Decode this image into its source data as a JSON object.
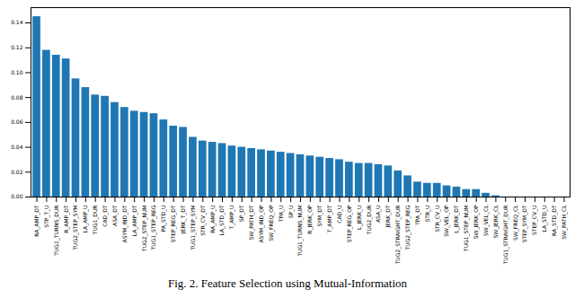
{
  "chart_data": {
    "type": "bar",
    "caption": "Fig. 2. Feature Selection using Mutual-Information",
    "categories": [
      "RA_AMP_DT",
      "STP_T_U",
      "TUG1_TURNS_DUR",
      "R_AMP_DT",
      "TUG2_STEP_SYM",
      "LA_AMP_U",
      "TUG1_DUR",
      "CAD_DT",
      "ASA_DT",
      "ASYM_IND_DT",
      "LA_AMP_DT",
      "TUG2_STEP_NUM",
      "TUG1_STEP_REG",
      "PA_STD_U",
      "STEP_REG_DT",
      "JERK_T_DT",
      "TUG1_STEP_SYM",
      "STR_CV_DT",
      "RA_AMP_U",
      "LA_STD_DT",
      "T_AMP_U",
      "SP_DT",
      "SW_PATH_DT",
      "ASYM_IND_OP",
      "SW_FREQ_OP",
      "TPA_U",
      "SP_U",
      "TUG1_TURNS_NUM",
      "R_JERK_OP",
      "SYM_DT",
      "T_AMP_DT",
      "CAD_U",
      "STEP_REG_OP",
      "L_JERK_U",
      "TUG2_DUR",
      "ASA_U",
      "JERK_DT",
      "TUG2_STRAIGHT_DUR",
      "TUG2_STEP_REG",
      "TPA_DT",
      "STR_U",
      "STR_CV_U",
      "SW_VEL_OP",
      "L_JERK_DT",
      "TUG1_STEP_NUM",
      "SW_JERK_OP",
      "SW_VEL_CL",
      "SW_JERK_CL",
      "TUG1_STRAIGHT_DUR",
      "SW_FREQ_CL",
      "STEP_SYM_DT",
      "STEP_CV_U",
      "LA_STD_U",
      "RA_STD_DT",
      "SW_PATH_CL"
    ],
    "values": [
      0.145,
      0.118,
      0.114,
      0.111,
      0.095,
      0.088,
      0.082,
      0.081,
      0.076,
      0.072,
      0.069,
      0.068,
      0.067,
      0.062,
      0.057,
      0.056,
      0.048,
      0.045,
      0.044,
      0.043,
      0.041,
      0.04,
      0.039,
      0.038,
      0.037,
      0.036,
      0.035,
      0.034,
      0.033,
      0.032,
      0.031,
      0.03,
      0.028,
      0.027,
      0.027,
      0.026,
      0.025,
      0.021,
      0.017,
      0.012,
      0.011,
      0.011,
      0.009,
      0.008,
      0.006,
      0.006,
      0.003,
      0.001,
      0,
      0,
      0,
      0,
      0,
      0,
      0
    ],
    "color": "#1f77b4",
    "ylim": [
      0,
      0.1523
    ],
    "yticks": [
      {
        "value": 0,
        "label": "0.00"
      },
      {
        "value": 0.02,
        "label": "0.02"
      },
      {
        "value": 0.04,
        "label": "0.04"
      },
      {
        "value": 0.06,
        "label": "0.06"
      },
      {
        "value": 0.08,
        "label": "0.08"
      },
      {
        "value": 0.1,
        "label": "0.10"
      },
      {
        "value": 0.12,
        "label": "0.12"
      },
      {
        "value": 0.14,
        "label": "0.14"
      }
    ],
    "grid": false
  }
}
